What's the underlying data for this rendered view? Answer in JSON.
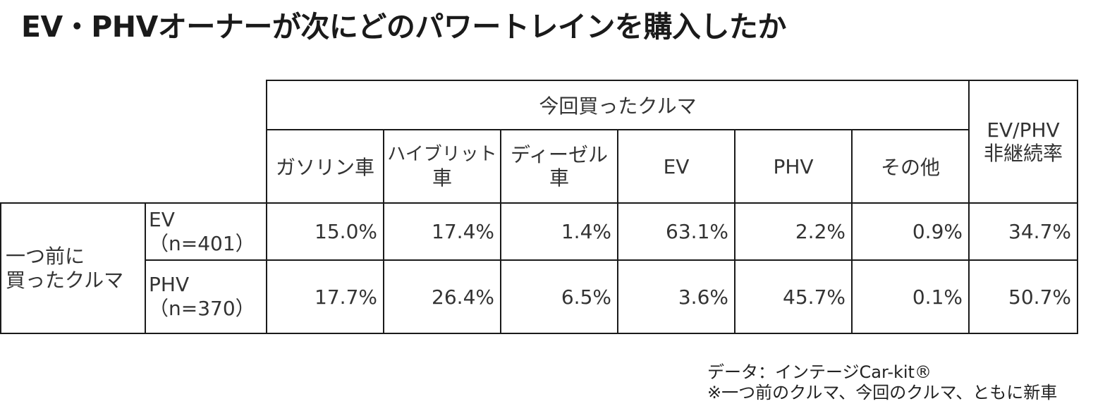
{
  "title": "EV・PHVオーナーが次にどのパワートレインを購入したか",
  "table": {
    "group_header": "今回買ったクルマ",
    "side_header": [
      "EV/PHV",
      "非継続率"
    ],
    "columns": [
      {
        "lines": [
          "ガソリン車"
        ]
      },
      {
        "lines": [
          "ハイブリット",
          "車"
        ]
      },
      {
        "lines": [
          "ディーゼル",
          "車"
        ]
      },
      {
        "lines": [
          "EV"
        ]
      },
      {
        "lines": [
          "PHV"
        ]
      },
      {
        "lines": [
          "その他"
        ]
      }
    ],
    "row_group_label": [
      "一つ前に",
      "買ったクルマ"
    ],
    "rows": [
      {
        "label": [
          "EV",
          "（n=401）"
        ],
        "values": [
          "15.0%",
          "17.4%",
          "1.4%",
          "63.1%",
          "2.2%",
          "0.9%"
        ],
        "rate": "34.7%"
      },
      {
        "label": [
          "PHV",
          "（n=370）"
        ],
        "values": [
          "17.7%",
          "26.4%",
          "6.5%",
          "3.6%",
          "45.7%",
          "0.1%"
        ],
        "rate": "50.7%"
      }
    ]
  },
  "notes": [
    "データ：インテージCar-kit®",
    "※一つ前のクルマ、今回のクルマ、ともに新車"
  ]
}
